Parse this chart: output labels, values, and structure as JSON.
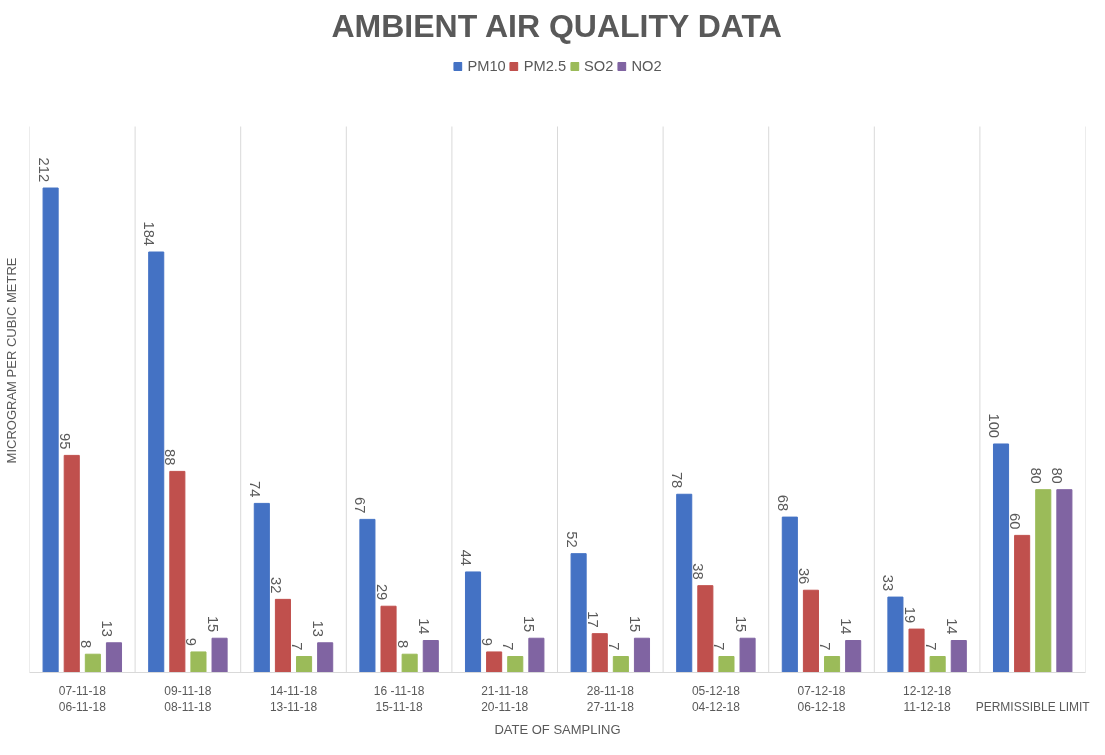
{
  "chart_data": {
    "type": "bar",
    "title": "AMBIENT AIR QUALITY DATA",
    "xlabel": "DATE OF SAMPLING",
    "ylabel": "MICROGRAM PER CUBIC METRE",
    "categories": [
      "07-11-18\n06-11-18",
      "09-11-18\n08-11-18",
      "14-11-18\n13-11-18",
      "16 -11-18\n15-11-18",
      "21-11-18\n20-11-18",
      "28-11-18\n27-11-18",
      "05-12-18\n04-12-18",
      "07-12-18\n06-12-18",
      "12-12-18\n11-12-18",
      "PERMISSIBLE LIMIT"
    ],
    "series": [
      {
        "name": "PM10",
        "color": "#4472c4",
        "values": [
          212,
          184,
          74,
          67,
          44,
          52,
          78,
          68,
          33,
          100
        ]
      },
      {
        "name": "PM2.5",
        "color": "#c0504d",
        "values": [
          95,
          88,
          32,
          29,
          9,
          17,
          38,
          36,
          19,
          60
        ]
      },
      {
        "name": "SO2",
        "color": "#9bbb59",
        "values": [
          8,
          9,
          7,
          8,
          7,
          7,
          7,
          7,
          7,
          80
        ]
      },
      {
        "name": "NO2",
        "color": "#8064a2",
        "values": [
          13,
          15,
          13,
          14,
          15,
          15,
          15,
          14,
          14,
          80
        ]
      }
    ],
    "data_labels": true,
    "legend": "top",
    "tick_labels": "x",
    "grid": false
  }
}
